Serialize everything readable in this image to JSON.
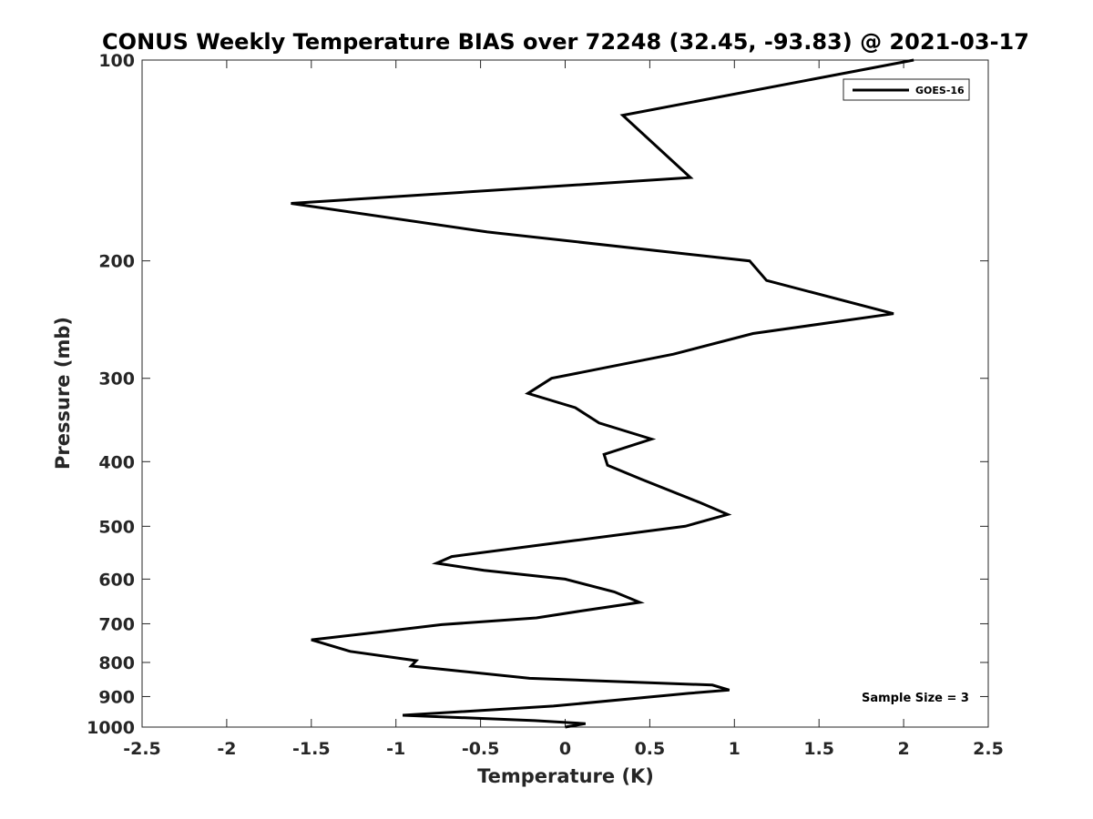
{
  "chart_data": {
    "type": "line",
    "title": "CONUS Weekly Temperature BIAS over 72248 (32.45, -93.83) @ 2021-03-17",
    "xlabel": "Temperature (K)",
    "ylabel": "Pressure (mb)",
    "xlim": [
      -2.5,
      2.5
    ],
    "ylim": [
      100,
      1000
    ],
    "y_scale": "log",
    "y_reversed": true,
    "x_ticks": [
      -2.5,
      -2,
      -1.5,
      -1,
      -0.5,
      0,
      0.5,
      1,
      1.5,
      2,
      2.5
    ],
    "x_tick_labels": [
      "-2.5",
      "-2",
      "-1.5",
      "-1",
      "-0.5",
      "0",
      "0.5",
      "1",
      "1.5",
      "2",
      "2.5"
    ],
    "y_ticks": [
      100,
      200,
      300,
      400,
      500,
      600,
      700,
      800,
      900,
      1000
    ],
    "y_tick_labels": [
      "100",
      "200",
      "300",
      "400",
      "500",
      "600",
      "700",
      "800",
      "900",
      "1000"
    ],
    "grid": false,
    "legend_position": "top-right",
    "series": [
      {
        "name": "GOES-16",
        "color": "#000000",
        "x": [
          2.06,
          0.34,
          0.74,
          -1.62,
          -0.46,
          1.09,
          1.19,
          1.94,
          1.11,
          0.64,
          -0.08,
          -0.22,
          0.06,
          0.2,
          0.51,
          0.23,
          0.25,
          0.45,
          0.79,
          0.96,
          0.71,
          0.06,
          -0.67,
          -0.76,
          -0.48,
          0.0,
          0.29,
          0.44,
          0.09,
          -0.17,
          -0.73,
          -1.09,
          -1.5,
          -1.27,
          -0.88,
          -0.91,
          -0.21,
          0.87,
          0.97,
          0.73,
          -0.07,
          -0.96,
          -0.18,
          0.12,
          0.0
        ],
        "y": [
          100,
          121,
          150,
          164,
          181,
          200,
          214,
          240,
          257,
          276,
          300,
          316,
          332,
          350,
          370,
          390,
          405,
          425,
          460,
          480,
          500,
          525,
          555,
          568,
          582,
          600,
          627,
          650,
          670,
          686,
          702,
          720,
          740,
          770,
          795,
          810,
          845,
          865,
          880,
          890,
          930,
          960,
          978,
          988,
          1000
        ]
      }
    ],
    "annotations": [
      {
        "text": "Sample Size = 3"
      }
    ]
  }
}
